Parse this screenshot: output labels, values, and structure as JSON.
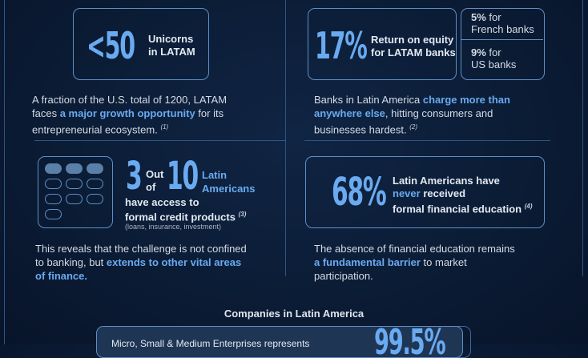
{
  "unicorns": {
    "value": "<50",
    "label_l1": "Unicorns",
    "label_l2": "in LATAM",
    "text_pre": "A fraction of the U.S. total of 1200, LATAM faces ",
    "text_hl": "a major growth opportunity",
    "text_post": " for its entrepreneurial ecosystem.",
    "ref": "(1)"
  },
  "roe": {
    "value": "17%",
    "label_l1": "Return on equity",
    "label_l2": "for LATAM banks",
    "french_pct": "5%",
    "french_l1": " for",
    "french_l2": "French banks",
    "us_pct": "9%",
    "us_l1": " for",
    "us_l2": "US banks",
    "text_pre": "Banks in Latin America ",
    "text_hl": "charge more than anywhere else",
    "text_post": ", hitting consumers and businesses hardest.",
    "ref": "(2)"
  },
  "credit": {
    "num": "3",
    "out": "Out",
    "of": "of",
    "total": "10",
    "label_l1": "Latin",
    "label_l2": "Americans",
    "line1": "have access to",
    "line2": "formal credit products",
    "ref": "(3)",
    "small": "(loans, insurance, investment)",
    "filled": 3,
    "count": 10,
    "text_pre": "This reveals that the challenge is not confined to banking, but ",
    "text_hl": "extends to other vital areas of finance."
  },
  "education": {
    "value": "68%",
    "l1": "Latin Americans have",
    "l2_hl": "never",
    "l2": " received",
    "l3": "formal financial education",
    "ref": "(4)",
    "text_pre": "The absence of financial education remains ",
    "text_hl": "a fundamental barrier",
    "text_post": " to market participation."
  },
  "companies": {
    "title": "Companies in Latin America",
    "text": "Micro, Small & Medium Enterprises represents",
    "value": "99.5%"
  },
  "colors": {
    "accent": "#6aaaf0",
    "border": "#5d8fc8",
    "background": "#0b1c35"
  }
}
